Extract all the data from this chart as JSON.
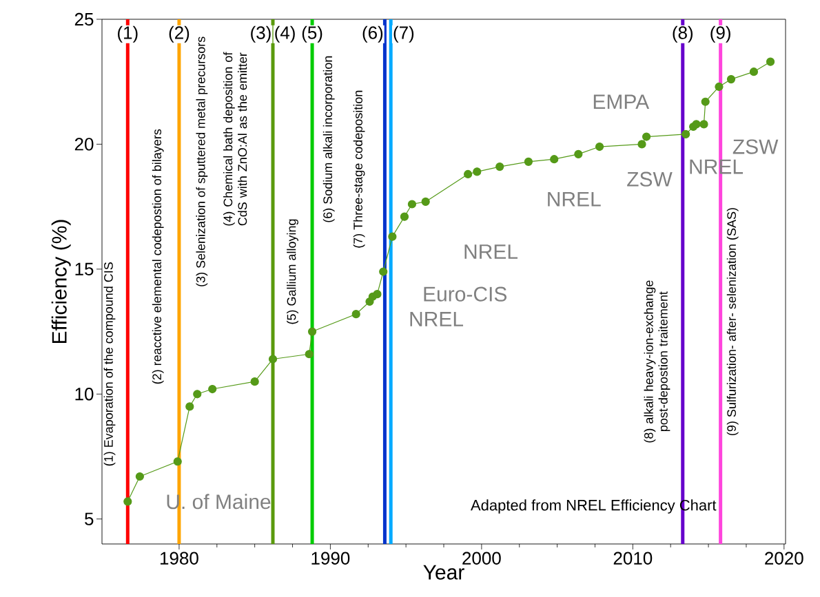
{
  "chart_data": {
    "type": "line",
    "xlabel": "Year",
    "ylabel": "Efficiency (%)",
    "x": [
      1976.6,
      1977.4,
      1979.9,
      1980.7,
      1981.2,
      1982.2,
      1985.0,
      1986.2,
      1988.6,
      1988.8,
      1991.7,
      1992.6,
      1992.8,
      1993.1,
      1993.5,
      1994.1,
      1994.9,
      1995.4,
      1996.3,
      1999.1,
      1999.7,
      2001.2,
      2003.1,
      2004.8,
      2006.4,
      2007.8,
      2010.6,
      2010.9,
      2013.5,
      2014.0,
      2014.2,
      2014.7,
      2014.8,
      2015.7,
      2016.5,
      2018.0,
      2019.1
    ],
    "series": [
      {
        "color": "#559a18",
        "values": [
          5.7,
          6.7,
          7.3,
          9.5,
          10.0,
          10.2,
          10.5,
          11.4,
          11.6,
          12.5,
          13.2,
          13.7,
          13.9,
          14.0,
          14.9,
          16.3,
          17.1,
          17.6,
          17.7,
          18.8,
          18.9,
          19.1,
          19.3,
          19.4,
          19.6,
          19.9,
          20.0,
          20.3,
          20.4,
          20.7,
          20.8,
          20.8,
          21.7,
          22.3,
          22.6,
          22.9,
          23.3
        ]
      }
    ],
    "marker": "circle",
    "xlim": [
      1974.9,
      2020.1
    ],
    "ylim": [
      4,
      25
    ],
    "xticks": [
      1980,
      1990,
      2000,
      2010,
      2020
    ],
    "yticks": [
      5,
      10,
      15,
      20,
      25
    ],
    "grid": false,
    "legend": false,
    "ref_lines": [
      {
        "axis": "x",
        "value": 1976.6,
        "color": "#ff0000"
      },
      {
        "axis": "x",
        "value": 1980.0,
        "color": "#ffa500"
      },
      {
        "axis": "x",
        "value": 1986.2,
        "color": "#5a9a0c"
      },
      {
        "axis": "x",
        "value": 1988.8,
        "color": "#00cc00"
      },
      {
        "axis": "x",
        "value": 1993.6,
        "color": "#0033cc"
      },
      {
        "axis": "x",
        "value": 1994.0,
        "color": "#00aaff"
      },
      {
        "axis": "x",
        "value": 2013.3,
        "color": "#6600cc"
      },
      {
        "axis": "x",
        "value": 2015.8,
        "color": "#ff44dd"
      }
    ],
    "annotations": [
      "(1) Evaporation of the compound CIS",
      "(2) reacctive elemental codepostion of bilayers",
      "(3) Selenization of sputtered metal precursors",
      "(4) Chemical bath deposition of CdS with ZnO:Al as the emitter",
      "(5) Gallium alloying",
      "(6) Sodium alkali incorporation",
      "(7) Three-stage codeposition",
      "(8) alkali heavy-ion-exchange post-depostion traitement",
      "(9) Sulfurization- after- selenization (SAS)",
      "U. of Maine",
      "NREL",
      "Euro-CIS",
      "NREL",
      "NREL",
      "ZSW",
      "EMPA",
      "NREL",
      "ZSW",
      "Adapted from NREL Efficiency Chart",
      "(1)",
      "(2)",
      "(3)",
      "(4)",
      "(5)",
      "(6)",
      "(7)",
      "(8)",
      "(9)"
    ]
  }
}
